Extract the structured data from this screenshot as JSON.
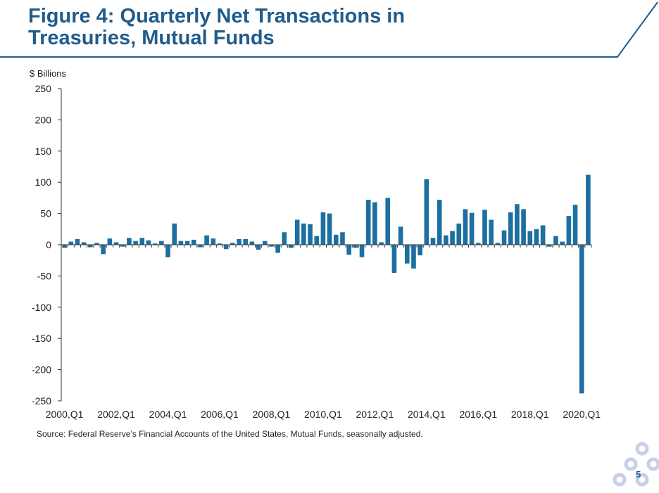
{
  "slide": {
    "title_line1": "Figure 4: Quarterly Net Transactions in",
    "title_line2": "Treasuries, Mutual Funds",
    "source": "Source: Federal Reserve’s Financial Accounts of the United States, Mutual Funds, seasonally adjusted.",
    "page_number": "5",
    "accent_color": "#1f5c8c",
    "bar_color": "#1c6fa0"
  },
  "chart_data": {
    "type": "bar",
    "title": "",
    "xlabel": "",
    "ylabel": "$ Billions",
    "ylim": [
      -250,
      250
    ],
    "yticks": [
      250,
      200,
      150,
      100,
      50,
      0,
      -50,
      -100,
      -150,
      -200,
      -250
    ],
    "x_tick_labels": [
      "2000,Q1",
      "2002,Q1",
      "2004,Q1",
      "2006,Q1",
      "2008,Q1",
      "2010,Q1",
      "2012,Q1",
      "2014,Q1",
      "2016,Q1",
      "2018,Q1",
      "2020,Q1"
    ],
    "categories": [
      "2000,Q1",
      "2000,Q2",
      "2000,Q3",
      "2000,Q4",
      "2001,Q1",
      "2001,Q2",
      "2001,Q3",
      "2001,Q4",
      "2002,Q1",
      "2002,Q2",
      "2002,Q3",
      "2002,Q4",
      "2003,Q1",
      "2003,Q2",
      "2003,Q3",
      "2003,Q4",
      "2004,Q1",
      "2004,Q2",
      "2004,Q3",
      "2004,Q4",
      "2005,Q1",
      "2005,Q2",
      "2005,Q3",
      "2005,Q4",
      "2006,Q1",
      "2006,Q2",
      "2006,Q3",
      "2006,Q4",
      "2007,Q1",
      "2007,Q2",
      "2007,Q3",
      "2007,Q4",
      "2008,Q1",
      "2008,Q2",
      "2008,Q3",
      "2008,Q4",
      "2009,Q1",
      "2009,Q2",
      "2009,Q3",
      "2009,Q4",
      "2010,Q1",
      "2010,Q2",
      "2010,Q3",
      "2010,Q4",
      "2011,Q1",
      "2011,Q2",
      "2011,Q3",
      "2011,Q4",
      "2012,Q1",
      "2012,Q2",
      "2012,Q3",
      "2012,Q4",
      "2013,Q1",
      "2013,Q2",
      "2013,Q3",
      "2013,Q4",
      "2014,Q1",
      "2014,Q2",
      "2014,Q3",
      "2014,Q4",
      "2015,Q1",
      "2015,Q2",
      "2015,Q3",
      "2015,Q4",
      "2016,Q1",
      "2016,Q2",
      "2016,Q3",
      "2016,Q4",
      "2017,Q1",
      "2017,Q2",
      "2017,Q3",
      "2017,Q4",
      "2018,Q1",
      "2018,Q2",
      "2018,Q3",
      "2018,Q4",
      "2019,Q1",
      "2019,Q2",
      "2019,Q3",
      "2019,Q4",
      "2020,Q1",
      "2020,Q2"
    ],
    "values": [
      -5,
      5,
      9,
      4,
      -4,
      3,
      -15,
      10,
      4,
      -3,
      11,
      6,
      11,
      7,
      2,
      6,
      -20,
      34,
      6,
      6,
      8,
      -4,
      15,
      10,
      2,
      -7,
      3,
      9,
      9,
      5,
      -8,
      6,
      -3,
      -13,
      20,
      -5,
      40,
      34,
      33,
      14,
      52,
      50,
      16,
      20,
      -16,
      -5,
      -20,
      72,
      68,
      4,
      75,
      -45,
      29,
      -30,
      -38,
      -17,
      105,
      11,
      72,
      15,
      22,
      34,
      57,
      51,
      3,
      56,
      40,
      3,
      23,
      52,
      65,
      57,
      22,
      25,
      31,
      -3,
      14,
      5,
      46,
      64,
      -238,
      112
    ]
  }
}
